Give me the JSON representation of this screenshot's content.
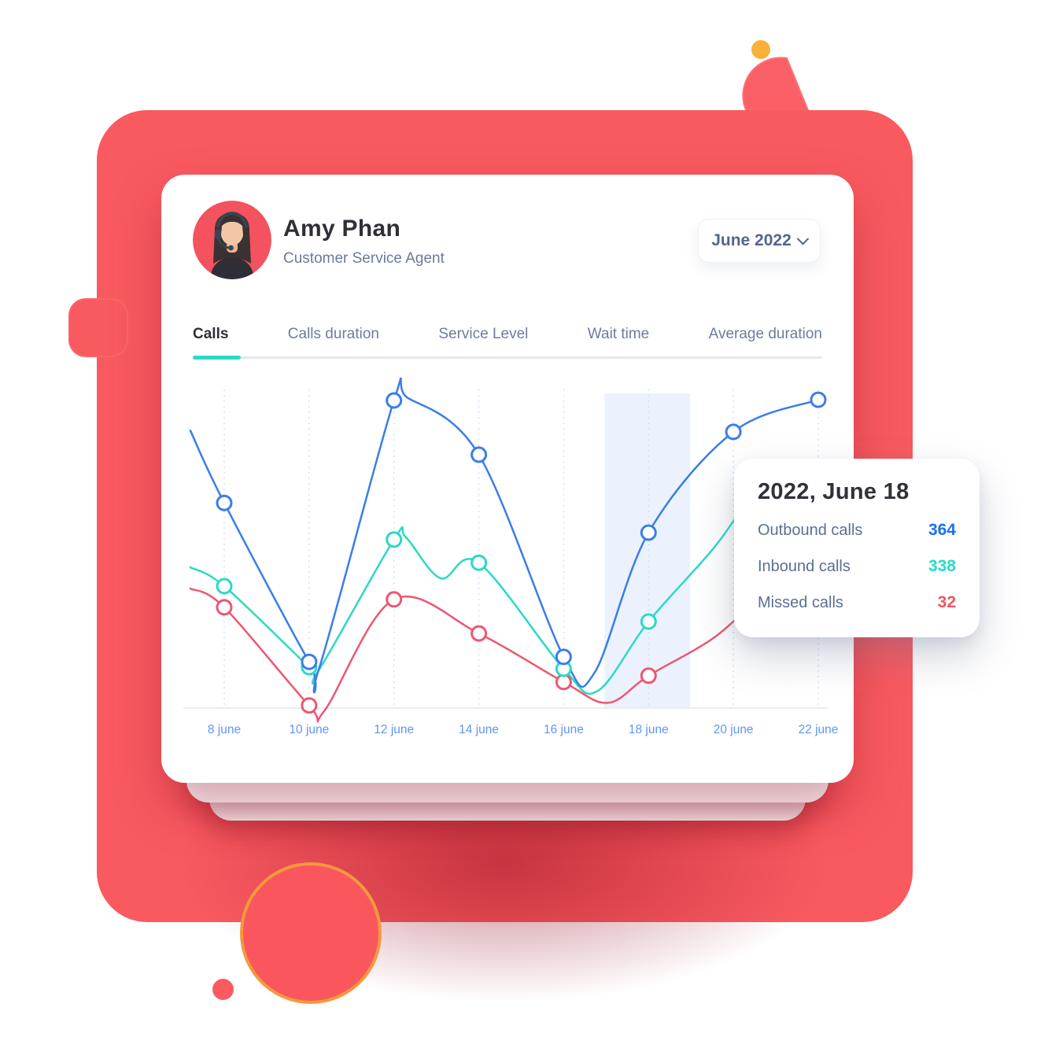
{
  "header": {
    "name": "Amy Phan",
    "role": "Customer Service Agent",
    "period_selector": {
      "label": "June 2022"
    }
  },
  "tabs": [
    {
      "label": "Calls",
      "active": true
    },
    {
      "label": "Calls duration",
      "active": false
    },
    {
      "label": "Service Level",
      "active": false
    },
    {
      "label": "Wait time",
      "active": false
    },
    {
      "label": "Average duration",
      "active": false
    }
  ],
  "chart_data": {
    "type": "line",
    "categories": [
      "8 june",
      "10 june",
      "12 june",
      "14 june",
      "16 june",
      "18 june",
      "20 june",
      "22 june"
    ],
    "y_unit": "percent_of_plot_height_above_baseline",
    "grid": "dashed-vertical",
    "axis_label_color": "#5E96F5",
    "highlight_band": {
      "centered_on": "18 june",
      "from_x": 4.48,
      "to_x": 5.49,
      "color": "#E9F1FD"
    },
    "known_values_at_highlight": {
      "category": "18 june",
      "Outbound calls": 364,
      "Inbound calls": 338,
      "Missed calls": 32
    },
    "series": [
      {
        "name": "Missed calls",
        "color": "#EE5672",
        "points": [
          {
            "x": -0.4,
            "y": 36.2,
            "marker": false
          },
          {
            "x": 0,
            "y": 30.5
          },
          {
            "x": 1,
            "y": 0.8
          },
          {
            "x": 1.18,
            "y": -0.8,
            "marker": false
          },
          {
            "x": 2,
            "y": 32.9
          },
          {
            "x": 3,
            "y": 22.6
          },
          {
            "x": 4,
            "y": 7.9
          },
          {
            "x": 4.52,
            "y": 1.6,
            "marker": false
          },
          {
            "x": 5,
            "y": 9.8
          },
          {
            "x": 5.78,
            "y": 21.5,
            "marker": false
          },
          {
            "x": 6.35,
            "y": 35.0,
            "marker": false
          }
        ]
      },
      {
        "name": "Inbound calls",
        "color": "#2BD9C6",
        "points": [
          {
            "x": -0.4,
            "y": 42.6,
            "marker": false
          },
          {
            "x": 0,
            "y": 36.9
          },
          {
            "x": 1,
            "y": 12.4
          },
          {
            "x": 1.1,
            "y": 10.9,
            "marker": false
          },
          {
            "x": 2,
            "y": 51.0
          },
          {
            "x": 2.14,
            "y": 51.7,
            "marker": false
          },
          {
            "x": 2.55,
            "y": 39.3,
            "marker": false
          },
          {
            "x": 3,
            "y": 44.0
          },
          {
            "x": 4,
            "y": 11.9
          },
          {
            "x": 4.4,
            "y": 5.2,
            "marker": false
          },
          {
            "x": 5,
            "y": 26.2
          },
          {
            "x": 5.78,
            "y": 48.8,
            "marker": false
          },
          {
            "x": 6.2,
            "y": 64.5,
            "marker": false
          }
        ]
      },
      {
        "name": "Outbound calls",
        "color": "#3B7DE9",
        "points": [
          {
            "x": -0.4,
            "y": 84.0,
            "marker": false
          },
          {
            "x": 0,
            "y": 62.1
          },
          {
            "x": 1,
            "y": 14.0
          },
          {
            "x": 1.12,
            "y": 12.2,
            "marker": false
          },
          {
            "x": 2,
            "y": 93.1
          },
          {
            "x": 2.16,
            "y": 93.9,
            "marker": false
          },
          {
            "x": 3,
            "y": 76.7
          },
          {
            "x": 4,
            "y": 15.5
          },
          {
            "x": 4.36,
            "y": 10.6,
            "marker": false
          },
          {
            "x": 5,
            "y": 53.1
          },
          {
            "x": 6,
            "y": 83.6
          },
          {
            "x": 7,
            "y": 93.3
          }
        ]
      }
    ]
  },
  "tooltip": {
    "title": "2022, June 18",
    "rows": [
      {
        "label": "Outbound calls",
        "value": "364",
        "color": "#1D6EF2"
      },
      {
        "label": "Inbound calls",
        "value": "338",
        "color": "#25DCC9"
      },
      {
        "label": "Missed calls",
        "value": "32",
        "color": "#F4545E"
      }
    ]
  },
  "colors": {
    "coral": "#F95A60",
    "orange_ring": "#F6983C",
    "yellow_dot": "#FBB03C",
    "active_tab_indicator": "#2BD9C6"
  }
}
